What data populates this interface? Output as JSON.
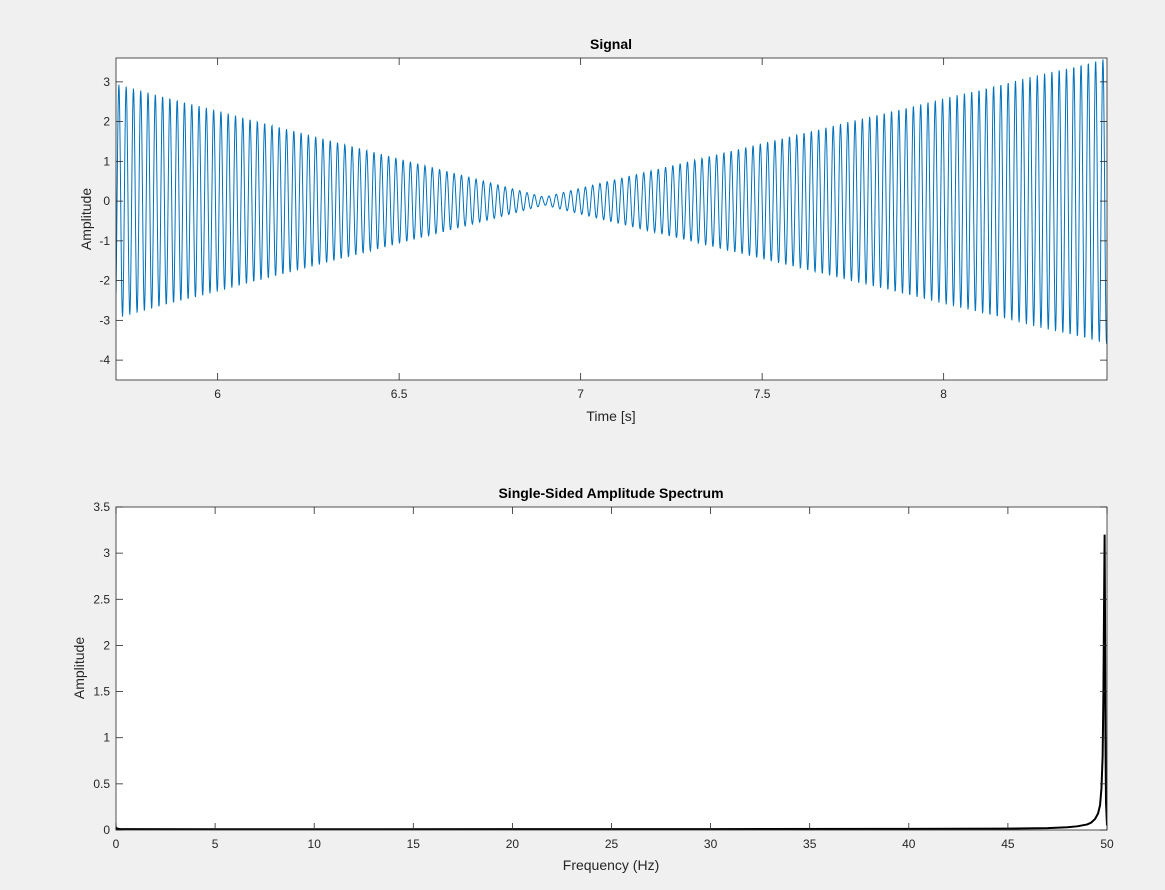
{
  "chart_data": [
    {
      "type": "line",
      "title": "Signal",
      "xlabel": "Time [s]",
      "ylabel": "Amplitude",
      "xlim": [
        5.72,
        8.45
      ],
      "ylim": [
        -4.5,
        3.6
      ],
      "xticks": [
        6,
        6.5,
        7,
        7.5,
        8
      ],
      "yticks": [
        -4,
        -3,
        -2,
        -1,
        0,
        1,
        2,
        3
      ],
      "xtick_labels": [
        "6",
        "6.5",
        "7",
        "7.5",
        "8"
      ],
      "ytick_labels": [
        "-4",
        "-3",
        "-2",
        "-1",
        "0",
        "1",
        "2",
        "3"
      ],
      "grid": false,
      "series": [
        {
          "color": "#0072BD",
          "signal": {
            "form": "a(t) * sin(2*pi*f*t)",
            "frequency_hz": 49.8,
            "envelope_t": [
              5.72,
              6.9,
              8.45
            ],
            "envelope_amp": [
              2.95,
              0.1,
              3.6
            ],
            "sample_rate_hz": 1000
          }
        }
      ]
    },
    {
      "type": "line",
      "title": "Single-Sided Amplitude Spectrum",
      "xlabel": "Frequency (Hz)",
      "ylabel": "Amplitude",
      "xlim": [
        0,
        50
      ],
      "ylim": [
        0,
        3.5
      ],
      "xticks": [
        0,
        5,
        10,
        15,
        20,
        25,
        30,
        35,
        40,
        45,
        50
      ],
      "yticks": [
        0,
        0.5,
        1,
        1.5,
        2,
        2.5,
        3,
        3.5
      ],
      "xtick_labels": [
        "0",
        "5",
        "10",
        "15",
        "20",
        "25",
        "30",
        "35",
        "40",
        "45",
        "50"
      ],
      "ytick_labels": [
        "0",
        "0.5",
        "1",
        "1.5",
        "2",
        "2.5",
        "3",
        "3.5"
      ],
      "grid": false,
      "series": [
        {
          "color": "#000000",
          "x": [
            0,
            0.05,
            0.2,
            5,
            10,
            20,
            30,
            40,
            45,
            47,
            48,
            48.5,
            49,
            49.2,
            49.4,
            49.55,
            49.65,
            49.72,
            49.78,
            49.82,
            49.85,
            49.88,
            49.9,
            49.92,
            49.95,
            50
          ],
          "y": [
            0.03,
            0.015,
            0.01,
            0.008,
            0.008,
            0.009,
            0.01,
            0.012,
            0.015,
            0.02,
            0.03,
            0.04,
            0.06,
            0.08,
            0.12,
            0.18,
            0.27,
            0.45,
            0.8,
            1.5,
            2.4,
            3.2,
            2.3,
            1.05,
            0.3,
            0.05
          ]
        }
      ]
    }
  ]
}
